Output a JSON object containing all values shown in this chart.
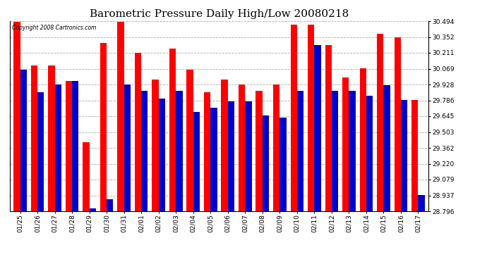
{
  "title": "Barometric Pressure Daily High/Low 20080218",
  "copyright": "Copyright 2008 Cartronics.com",
  "dates": [
    "01/25",
    "01/26",
    "01/27",
    "01/28",
    "01/29",
    "01/30",
    "01/31",
    "02/01",
    "02/02",
    "02/03",
    "02/04",
    "02/05",
    "02/06",
    "02/07",
    "02/08",
    "02/09",
    "02/10",
    "02/11",
    "02/12",
    "02/13",
    "02/14",
    "02/15",
    "02/16",
    "02/17"
  ],
  "highs": [
    30.49,
    30.1,
    30.1,
    29.96,
    29.41,
    30.3,
    30.49,
    30.21,
    29.97,
    30.25,
    30.06,
    29.86,
    29.97,
    29.93,
    29.87,
    29.93,
    30.46,
    30.46,
    30.28,
    29.99,
    30.07,
    30.38,
    30.35,
    29.79
  ],
  "lows": [
    30.06,
    29.86,
    29.93,
    29.96,
    28.82,
    28.9,
    29.93,
    29.87,
    29.8,
    29.87,
    29.68,
    29.72,
    29.78,
    29.78,
    29.65,
    29.63,
    29.87,
    30.28,
    29.87,
    29.87,
    29.83,
    29.92,
    29.79,
    28.94
  ],
  "ylim": [
    28.796,
    30.494
  ],
  "yticks": [
    28.796,
    28.937,
    29.079,
    29.22,
    29.362,
    29.503,
    29.645,
    29.786,
    29.928,
    30.069,
    30.211,
    30.352,
    30.494
  ],
  "high_color": "#ff0000",
  "low_color": "#0000cc",
  "bg_color": "#ffffff",
  "plot_bg_color": "#ffffff",
  "grid_color": "#999999",
  "title_fontsize": 11,
  "tick_fontsize": 6.5,
  "bar_width": 0.38
}
